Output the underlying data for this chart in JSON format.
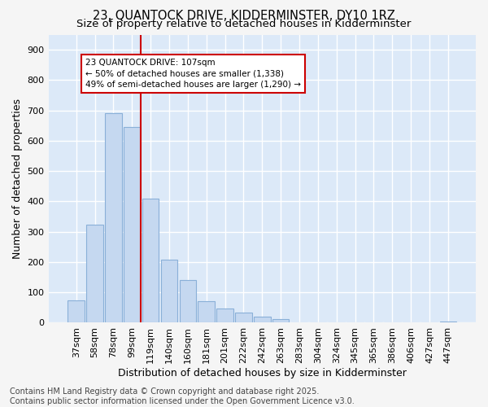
{
  "title_line1": "23, QUANTOCK DRIVE, KIDDERMINSTER, DY10 1RZ",
  "title_line2": "Size of property relative to detached houses in Kidderminster",
  "xlabel": "Distribution of detached houses by size in Kidderminster",
  "ylabel": "Number of detached properties",
  "categories": [
    "37sqm",
    "58sqm",
    "78sqm",
    "99sqm",
    "119sqm",
    "140sqm",
    "160sqm",
    "181sqm",
    "201sqm",
    "222sqm",
    "242sqm",
    "263sqm",
    "283sqm",
    "304sqm",
    "324sqm",
    "345sqm",
    "365sqm",
    "386sqm",
    "406sqm",
    "427sqm",
    "447sqm"
  ],
  "values": [
    75,
    323,
    690,
    645,
    410,
    207,
    140,
    70,
    46,
    33,
    20,
    12,
    0,
    0,
    0,
    0,
    0,
    0,
    0,
    0,
    3
  ],
  "bar_color": "#c5d8f0",
  "bar_edge_color": "#8ab0d8",
  "vline_x_index": 3,
  "vline_color": "#cc0000",
  "annotation_text": "23 QUANTOCK DRIVE: 107sqm\n← 50% of detached houses are smaller (1,338)\n49% of semi-detached houses are larger (1,290) →",
  "annotation_box_color": "#ffffff",
  "annotation_box_edge_color": "#cc0000",
  "footer_line1": "Contains HM Land Registry data © Crown copyright and database right 2025.",
  "footer_line2": "Contains public sector information licensed under the Open Government Licence v3.0.",
  "ylim": [
    0,
    950
  ],
  "yticks": [
    0,
    100,
    200,
    300,
    400,
    500,
    600,
    700,
    800,
    900
  ],
  "figure_bg": "#f5f5f5",
  "axes_bg": "#dce9f8",
  "grid_color": "#ffffff",
  "title_fontsize": 10.5,
  "subtitle_fontsize": 9.5,
  "axis_label_fontsize": 9,
  "tick_fontsize": 8,
  "footer_fontsize": 7
}
